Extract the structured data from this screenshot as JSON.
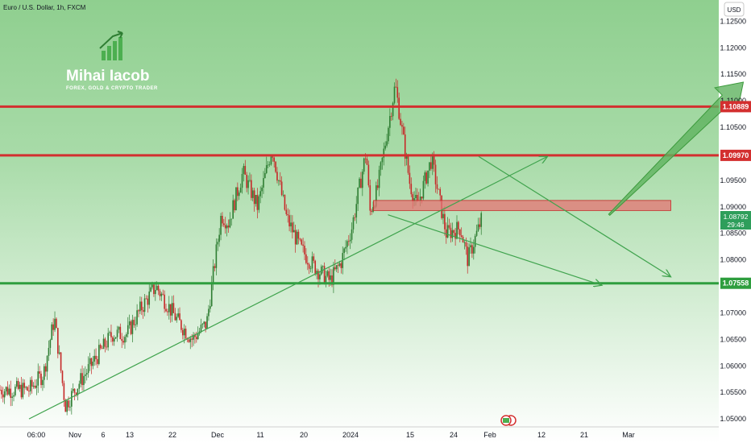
{
  "symbol_title": "Euro / U.S. Dollar, 1h, FXCM",
  "currency_button": "USD",
  "brand": {
    "name": "Mihai Iacob",
    "tagline": "FOREX, GOLD & CRYPTO TRADER"
  },
  "price_badge": {
    "price": "1.08792",
    "countdown": "29:46"
  },
  "colors": {
    "resistance": "#d32f2f",
    "support": "#2e9e3e",
    "zone": "#e57373",
    "arrow": "#5fb35f",
    "candle_up": "#2e7d32",
    "candle_down": "#c62828",
    "bg_top": "#8fcf8f",
    "bg_bottom": "#ffffff"
  },
  "chart_data": {
    "type": "candlestick",
    "title": "Euro / U.S. Dollar, 1h, FXCM",
    "ylim": [
      1.0485,
      1.129
    ],
    "y_ticks": [
      "1.12500",
      "1.12000",
      "1.11500",
      "1.11000",
      "1.10500",
      "1.10000",
      "1.09500",
      "1.09000",
      "1.08500",
      "1.08000",
      "1.07500",
      "1.07000",
      "1.06500",
      "1.06000",
      "1.05500",
      "1.05000"
    ],
    "x_ticks": [
      "06:00",
      "Nov",
      "6",
      "13",
      "22",
      "Dec",
      "11",
      "20",
      "2024",
      "15",
      "24",
      "Feb",
      "12",
      "21",
      "Mar"
    ],
    "price_path_days": [
      0,
      4,
      7,
      10,
      14,
      18,
      23,
      27,
      31,
      35,
      41,
      45,
      49,
      53,
      55,
      59,
      63,
      67,
      71,
      75,
      79,
      83,
      86,
      89,
      93,
      94,
      96,
      101,
      105,
      107,
      111,
      115,
      119,
      121,
      125
    ],
    "price_path_values": [
      1.0555,
      1.0585,
      1.069,
      1.0525,
      1.057,
      1.061,
      1.066,
      1.066,
      1.071,
      1.075,
      1.0685,
      1.065,
      1.068,
      1.0885,
      1.087,
      1.0965,
      1.09,
      1.101,
      1.088,
      1.082,
      1.0785,
      1.076,
      1.0795,
      1.086,
      1.1005,
      1.089,
      1.093,
      1.113,
      1.0945,
      1.09,
      1.099,
      1.085,
      1.086,
      1.08,
      1.088
    ],
    "horizontal_levels": [
      {
        "label": "1.10889",
        "value": 1.10889,
        "kind": "resistance"
      },
      {
        "label": "1.09970",
        "value": 1.0997,
        "kind": "resistance"
      },
      {
        "label": "1.07558",
        "value": 1.07558,
        "kind": "support"
      }
    ],
    "zone": {
      "low": 1.0893,
      "high": 1.0912,
      "from_day": 95,
      "to_day": 177
    },
    "trendlines": [
      {
        "from": [
          0,
          1.05
        ],
        "to": [
          143,
          1.0995
        ],
        "arrow": true
      },
      {
        "from": [
          124,
          1.0995
        ],
        "to": [
          177,
          1.0768
        ],
        "arrow": true
      },
      {
        "from": [
          99,
          1.0885
        ],
        "to": [
          158,
          1.0752
        ],
        "arrow": true
      }
    ],
    "projection_arrow": {
      "from": [
        160,
        1.0885
      ],
      "to": [
        197,
        1.1135
      ]
    }
  }
}
